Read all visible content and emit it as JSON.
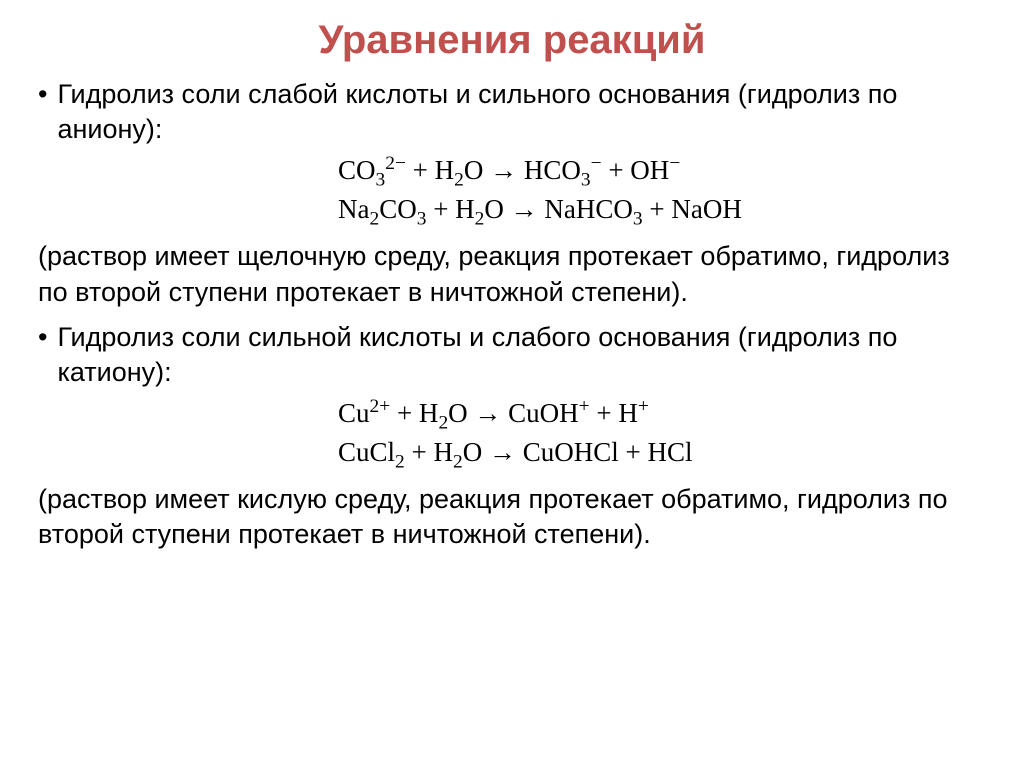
{
  "title": {
    "text": "Уравнения реакций",
    "color": "#c0504d",
    "fontsize": 40
  },
  "body": {
    "color": "#000000",
    "fontsize": 27
  },
  "equation_style": {
    "fontsize": 27
  },
  "section1": {
    "bullet": "Гидролиз соли слабой кислоты и сильного основания (гидролиз по аниону):",
    "eq1_html": "CO<sub>3</sub><sup>2−</sup> + H<sub>2</sub>O → HCO<sub>3</sub><sup>−</sup> + OH<sup>−</sup>",
    "eq2_html": "Na<sub>2</sub>CO<sub>3</sub> + H<sub>2</sub>O → NaHCO<sub>3</sub> + NaOH",
    "paren": "(раствор имеет щелочную среду, реакция протекает обратимо, гидролиз по второй ступени протекает в ничтожной степени)."
  },
  "section2": {
    "bullet": "Гидролиз соли сильной кислоты и слабого основания (гидролиз по катиону):",
    "eq1_html": "Cu<sup>2+</sup> + H<sub>2</sub>O → CuOH<sup>+</sup> + H<sup>+</sup>",
    "eq2_html": "CuCl<sub>2</sub> + H<sub>2</sub>O → CuOHCl + HCl",
    "paren": "(раствор имеет кислую среду, реакция протекает обратимо, гидролиз по второй ступени протекает в ничтожной степени)."
  }
}
